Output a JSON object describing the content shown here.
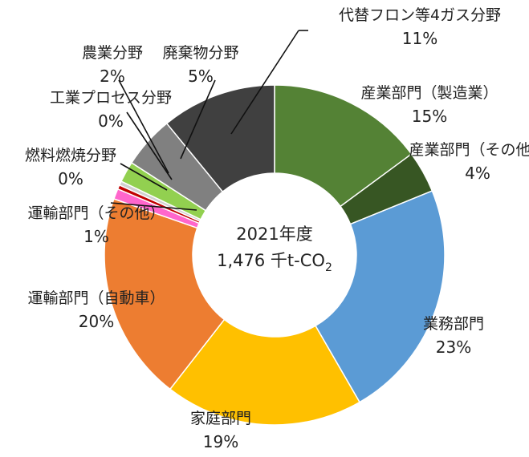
{
  "chart_data": {
    "type": "pie",
    "title": "",
    "center_label": {
      "year": "2021年度",
      "total_prefix": "1,476 千t-CO",
      "total_sub": "2"
    },
    "slices": [
      {
        "name": "産業部門（製造業）",
        "pct_label": "15%",
        "value": 15,
        "color": "#548235"
      },
      {
        "name": "産業部門（その他）",
        "pct_label": "4%",
        "value": 4,
        "color": "#375623"
      },
      {
        "name": "業務部門",
        "pct_label": "23%",
        "value": 23,
        "color": "#5B9BD5"
      },
      {
        "name": "家庭部門",
        "pct_label": "19%",
        "value": 19,
        "color": "#FFC000"
      },
      {
        "name": "運輸部門（自動車）",
        "pct_label": "20%",
        "value": 20,
        "color": "#ED7D31"
      },
      {
        "name": "運輸部門（その他）",
        "pct_label": "1%",
        "value": 1,
        "color": "#FF66CC"
      },
      {
        "name": "燃料燃焼分野",
        "pct_label": "0%",
        "value": 0.4,
        "color": "#C00000"
      },
      {
        "name": "工業プロセス分野",
        "pct_label": "0%",
        "value": 0.4,
        "color": "#D0D0D0"
      },
      {
        "name": "農業分野",
        "pct_label": "2%",
        "value": 2,
        "color": "#92D050"
      },
      {
        "name": "廃棄物分野",
        "pct_label": "5%",
        "value": 5,
        "color": "#808080"
      },
      {
        "name": "代替フロン等4ガス分野",
        "pct_label": "11%",
        "value": 11,
        "color": "#404040"
      }
    ]
  }
}
